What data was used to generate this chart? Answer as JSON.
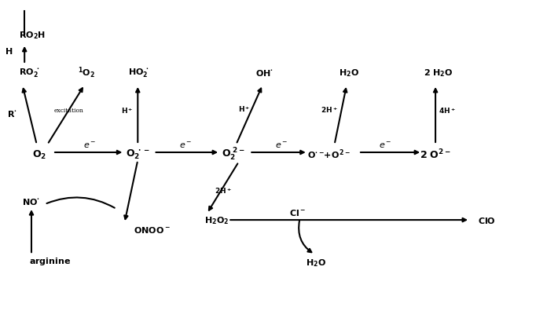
{
  "bg_color": "#ffffff",
  "text_color": "#000000",
  "figsize": [
    6.82,
    4.06
  ],
  "dpi": 100,
  "font_size": 8,
  "arrow_lw": 1.5
}
